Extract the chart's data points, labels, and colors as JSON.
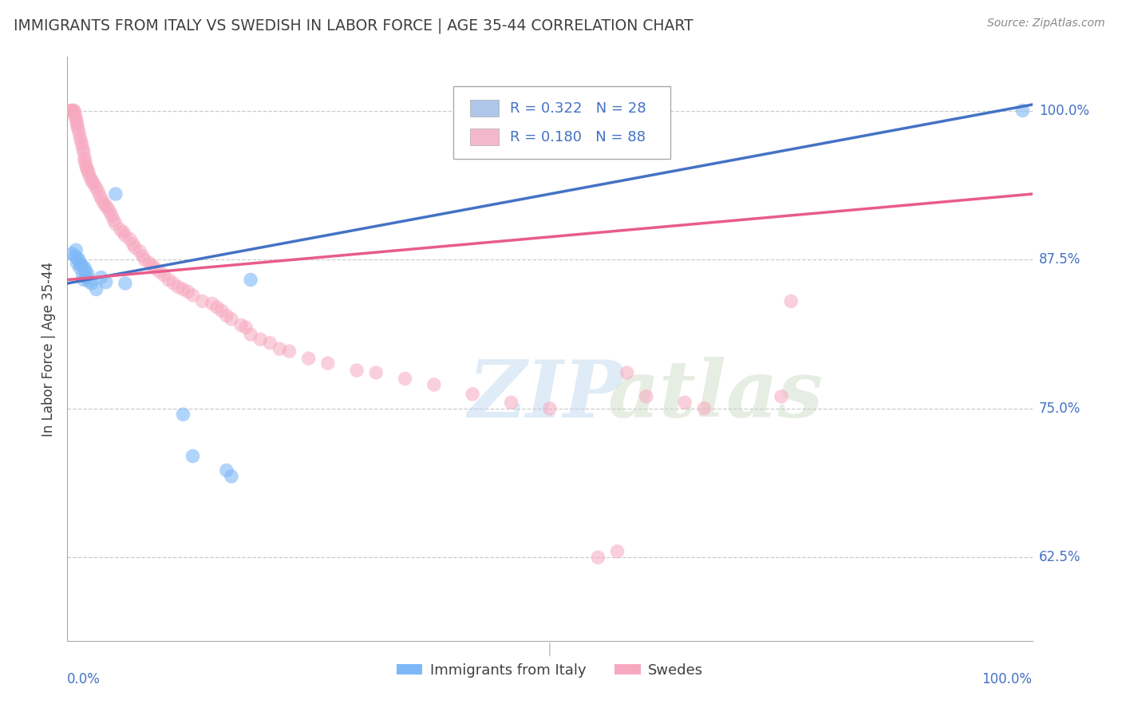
{
  "title": "IMMIGRANTS FROM ITALY VS SWEDISH IN LABOR FORCE | AGE 35-44 CORRELATION CHART",
  "source": "Source: ZipAtlas.com",
  "ylabel": "In Labor Force | Age 35-44",
  "ytick_labels": [
    "62.5%",
    "75.0%",
    "87.5%",
    "100.0%"
  ],
  "ytick_values": [
    0.625,
    0.75,
    0.875,
    1.0
  ],
  "xlim": [
    0.0,
    1.0
  ],
  "ylim": [
    0.555,
    1.045
  ],
  "blue_color": "#7EB8F7",
  "pink_color": "#F7A8C0",
  "blue_line_color": "#4472C4",
  "pink_line_color": "#E85C8A",
  "R_blue": 0.322,
  "N_blue": 28,
  "R_pink": 0.18,
  "N_pink": 88,
  "blue_x": [
    0.005,
    0.008,
    0.009,
    0.01,
    0.01,
    0.012,
    0.013,
    0.014,
    0.015,
    0.016,
    0.017,
    0.018,
    0.019,
    0.02,
    0.021,
    0.022,
    0.025,
    0.03,
    0.035,
    0.04,
    0.05,
    0.06,
    0.12,
    0.13,
    0.165,
    0.17,
    0.19,
    0.99
  ],
  "blue_y": [
    0.88,
    0.878,
    0.883,
    0.876,
    0.872,
    0.875,
    0.868,
    0.871,
    0.87,
    0.862,
    0.858,
    0.868,
    0.865,
    0.86,
    0.863,
    0.857,
    0.855,
    0.85,
    0.86,
    0.856,
    0.93,
    0.855,
    0.745,
    0.71,
    0.698,
    0.693,
    0.858,
    1.0
  ],
  "pink_x": [
    0.004,
    0.005,
    0.005,
    0.006,
    0.007,
    0.008,
    0.008,
    0.009,
    0.01,
    0.01,
    0.011,
    0.012,
    0.013,
    0.014,
    0.015,
    0.016,
    0.017,
    0.018,
    0.018,
    0.019,
    0.02,
    0.021,
    0.022,
    0.023,
    0.025,
    0.026,
    0.028,
    0.03,
    0.032,
    0.034,
    0.036,
    0.038,
    0.04,
    0.042,
    0.044,
    0.046,
    0.048,
    0.05,
    0.055,
    0.058,
    0.06,
    0.065,
    0.068,
    0.07,
    0.075,
    0.078,
    0.08,
    0.085,
    0.088,
    0.09,
    0.095,
    0.1,
    0.105,
    0.11,
    0.115,
    0.12,
    0.125,
    0.13,
    0.14,
    0.15,
    0.155,
    0.16,
    0.165,
    0.17,
    0.18,
    0.185,
    0.19,
    0.2,
    0.21,
    0.22,
    0.23,
    0.25,
    0.27,
    0.3,
    0.32,
    0.35,
    0.38,
    0.42,
    0.46,
    0.5,
    0.55,
    0.57,
    0.58,
    0.6,
    0.64,
    0.66,
    0.74,
    0.75
  ],
  "pink_y": [
    1.0,
    1.0,
    1.0,
    1.0,
    1.0,
    0.998,
    0.995,
    0.993,
    0.99,
    0.988,
    0.985,
    0.982,
    0.978,
    0.975,
    0.972,
    0.968,
    0.965,
    0.96,
    0.958,
    0.955,
    0.952,
    0.95,
    0.948,
    0.945,
    0.942,
    0.94,
    0.938,
    0.935,
    0.932,
    0.928,
    0.925,
    0.922,
    0.92,
    0.918,
    0.915,
    0.912,
    0.908,
    0.905,
    0.9,
    0.898,
    0.895,
    0.892,
    0.888,
    0.885,
    0.882,
    0.878,
    0.875,
    0.872,
    0.87,
    0.868,
    0.865,
    0.862,
    0.858,
    0.855,
    0.852,
    0.85,
    0.848,
    0.845,
    0.84,
    0.838,
    0.835,
    0.832,
    0.828,
    0.825,
    0.82,
    0.818,
    0.812,
    0.808,
    0.805,
    0.8,
    0.798,
    0.792,
    0.788,
    0.782,
    0.78,
    0.775,
    0.77,
    0.762,
    0.755,
    0.75,
    0.625,
    0.63,
    0.78,
    0.76,
    0.755,
    0.75,
    0.76,
    0.84
  ],
  "watermark_zip": "ZIP",
  "watermark_atlas": "atlas",
  "legend_box_color_blue": "#AEC6E8",
  "legend_box_color_pink": "#F4B8CC",
  "legend_text_color": "#4472C4",
  "background_color": "#FFFFFF",
  "grid_color": "#CCCCCC",
  "axis_label_color": "#4472C4",
  "title_color": "#404040"
}
